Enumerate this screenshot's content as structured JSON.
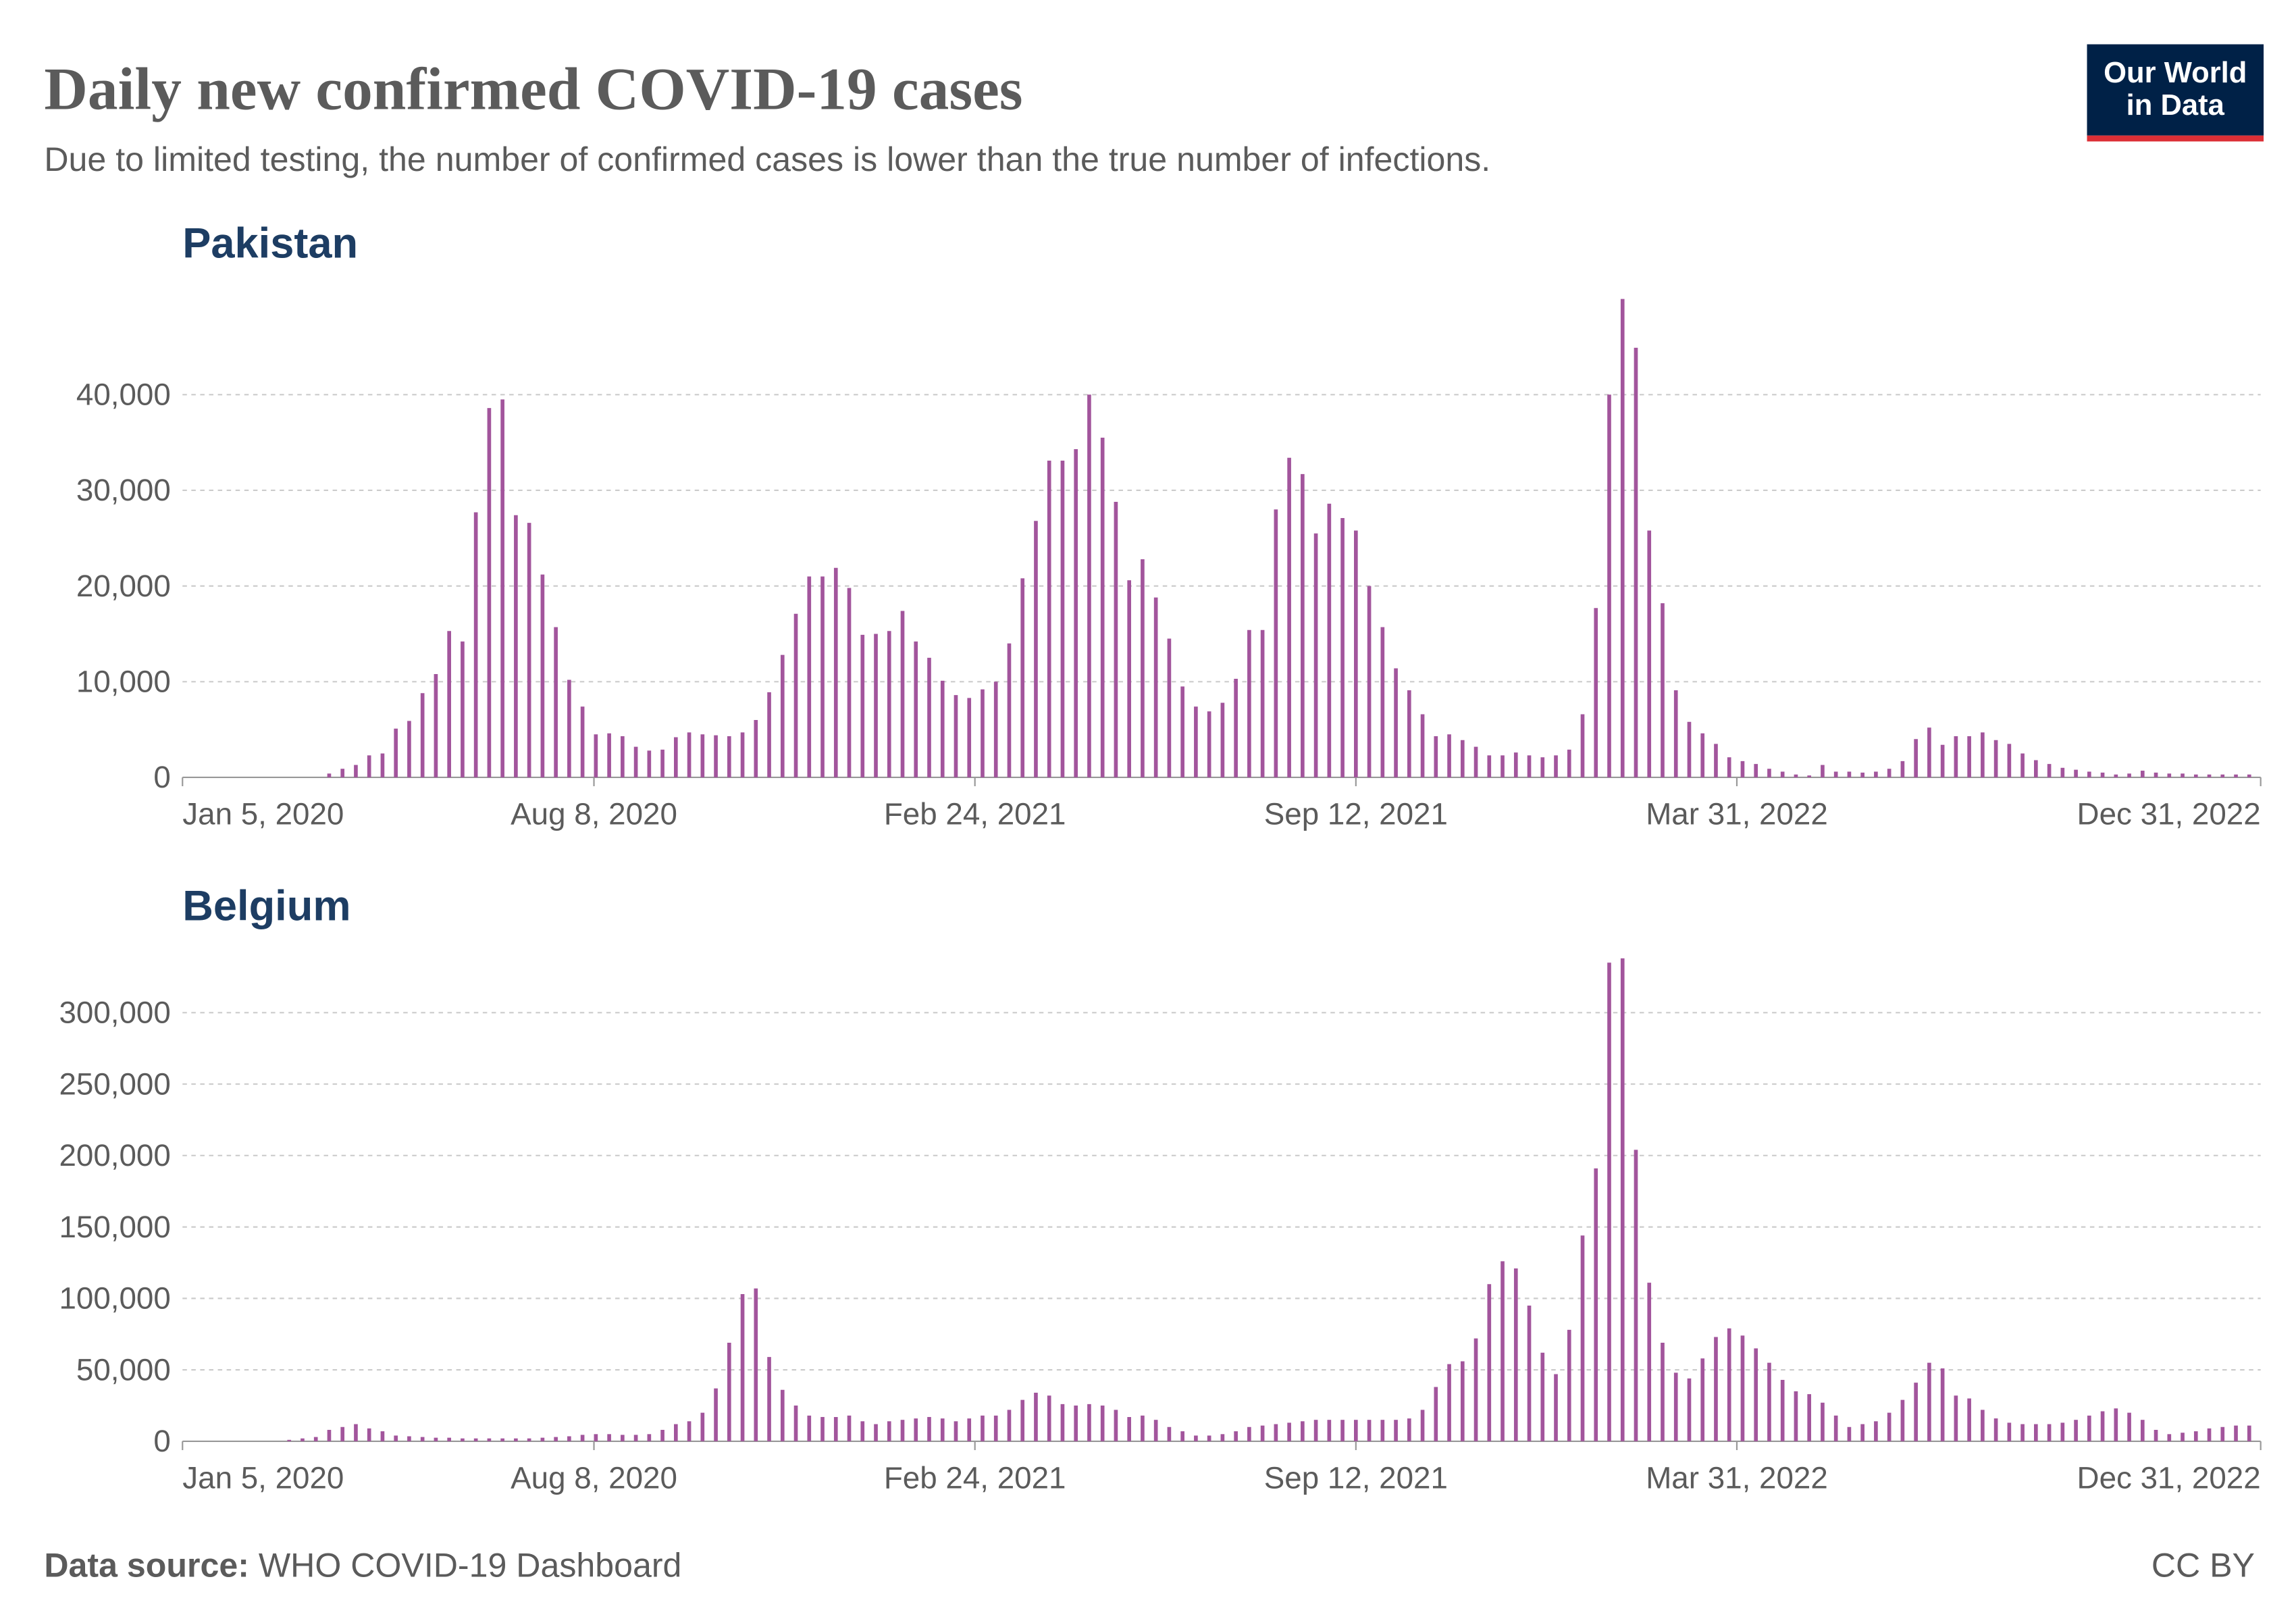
{
  "title": "Daily new confirmed COVID-19 cases",
  "subtitle": "Due to limited testing, the number of confirmed cases is lower than the true number of infections.",
  "logo": [
    "Our World",
    "in Data"
  ],
  "source_label": "Data source:",
  "source": "WHO COVID-19 Dashboard",
  "license": "CC BY",
  "chart_data": [
    {
      "type": "bar",
      "title": "Pakistan",
      "color": "#a2559c",
      "grid": true,
      "x": [
        "2020-01-05",
        "2020-01-12",
        "2020-01-19",
        "2020-01-26",
        "2020-02-02",
        "2020-02-09",
        "2020-02-16",
        "2020-02-23",
        "2020-03-01",
        "2020-03-08",
        "2020-03-15",
        "2020-03-22",
        "2020-03-29",
        "2020-04-05",
        "2020-04-12",
        "2020-04-19",
        "2020-04-26",
        "2020-05-03",
        "2020-05-10",
        "2020-05-17",
        "2020-05-24",
        "2020-05-31",
        "2020-06-07",
        "2020-06-14",
        "2020-06-21",
        "2020-06-28",
        "2020-07-05",
        "2020-07-12",
        "2020-07-19",
        "2020-07-26",
        "2020-08-02",
        "2020-08-09",
        "2020-08-16",
        "2020-08-23",
        "2020-08-30",
        "2020-09-06",
        "2020-09-13",
        "2020-09-20",
        "2020-09-27",
        "2020-10-04",
        "2020-10-11",
        "2020-10-18",
        "2020-10-25",
        "2020-11-01",
        "2020-11-08",
        "2020-11-15",
        "2020-11-22",
        "2020-11-29",
        "2020-12-06",
        "2020-12-13",
        "2020-12-20",
        "2020-12-27",
        "2021-01-03",
        "2021-01-10",
        "2021-01-17",
        "2021-01-24",
        "2021-01-31",
        "2021-02-07",
        "2021-02-14",
        "2021-02-21",
        "2021-02-28",
        "2021-03-07",
        "2021-03-14",
        "2021-03-21",
        "2021-03-28",
        "2021-04-04",
        "2021-04-11",
        "2021-04-18",
        "2021-04-25",
        "2021-05-02",
        "2021-05-09",
        "2021-05-16",
        "2021-05-23",
        "2021-05-30",
        "2021-06-06",
        "2021-06-13",
        "2021-06-20",
        "2021-06-27",
        "2021-07-04",
        "2021-07-11",
        "2021-07-18",
        "2021-07-25",
        "2021-08-01",
        "2021-08-08",
        "2021-08-15",
        "2021-08-22",
        "2021-08-29",
        "2021-09-05",
        "2021-09-12",
        "2021-09-19",
        "2021-09-26",
        "2021-10-03",
        "2021-10-10",
        "2021-10-17",
        "2021-10-24",
        "2021-10-31",
        "2021-11-07",
        "2021-11-14",
        "2021-11-21",
        "2021-11-28",
        "2021-12-05",
        "2021-12-12",
        "2021-12-19",
        "2021-12-26",
        "2022-01-02",
        "2022-01-09",
        "2022-01-16",
        "2022-01-23",
        "2022-01-30",
        "2022-02-06",
        "2022-02-13",
        "2022-02-20",
        "2022-02-27",
        "2022-03-06",
        "2022-03-13",
        "2022-03-20",
        "2022-03-27",
        "2022-04-03",
        "2022-04-10",
        "2022-04-17",
        "2022-04-24",
        "2022-05-01",
        "2022-05-08",
        "2022-05-15",
        "2022-05-22",
        "2022-05-29",
        "2022-06-05",
        "2022-06-12",
        "2022-06-19",
        "2022-06-26",
        "2022-07-03",
        "2022-07-10",
        "2022-07-17",
        "2022-07-24",
        "2022-07-31",
        "2022-08-07",
        "2022-08-14",
        "2022-08-21",
        "2022-08-28",
        "2022-09-04",
        "2022-09-11",
        "2022-09-18",
        "2022-09-25",
        "2022-10-02",
        "2022-10-09",
        "2022-10-16",
        "2022-10-23",
        "2022-10-30",
        "2022-11-06",
        "2022-11-13",
        "2022-11-20",
        "2022-11-27",
        "2022-12-04",
        "2022-12-11",
        "2022-12-18",
        "2022-12-25"
      ],
      "values": [
        0,
        0,
        0,
        0,
        0,
        0,
        0,
        0,
        0,
        0,
        0,
        400,
        900,
        1300,
        2300,
        2500,
        5100,
        5900,
        8800,
        10800,
        15300,
        14200,
        27700,
        38600,
        39500,
        27400,
        26600,
        21200,
        15700,
        10200,
        7400,
        4500,
        4600,
        4300,
        3200,
        2800,
        2900,
        4200,
        4700,
        4500,
        4400,
        4300,
        4700,
        6000,
        8900,
        12800,
        17100,
        21000,
        21000,
        21900,
        19800,
        14900,
        15000,
        15300,
        17400,
        14200,
        12500,
        10100,
        8600,
        8300,
        9200,
        10000,
        14000,
        20800,
        26800,
        33100,
        33100,
        34300,
        40000,
        35500,
        28800,
        20600,
        22800,
        18800,
        14500,
        9500,
        7400,
        6900,
        7800,
        10300,
        15400,
        15400,
        28000,
        33400,
        31700,
        25500,
        28600,
        27100,
        25800,
        20000,
        15700,
        11400,
        9100,
        6600,
        4300,
        4500,
        3900,
        3200,
        2300,
        2300,
        2600,
        2300,
        2100,
        2300,
        2900,
        6600,
        17700,
        40000,
        50000,
        44900,
        25800,
        18200,
        9100,
        5800,
        4600,
        3500,
        2100,
        1700,
        1400,
        900,
        600,
        300,
        200,
        1300,
        600,
        600,
        500,
        600,
        900,
        1700,
        4000,
        5200,
        3400,
        4300,
        4300,
        4700,
        3900,
        3500,
        2500,
        1800,
        1400,
        1000,
        800,
        600,
        500,
        300,
        400,
        700,
        500,
        400,
        400,
        300,
        300,
        300,
        300,
        300
      ],
      "xlim": [
        "2020-01-05",
        "2022-12-31"
      ],
      "xticks": [
        {
          "value": "2020-01-05",
          "label": "Jan 5, 2020"
        },
        {
          "value": "2020-08-08",
          "label": "Aug 8, 2020"
        },
        {
          "value": "2021-02-24",
          "label": "Feb 24, 2021"
        },
        {
          "value": "2021-09-12",
          "label": "Sep 12, 2021"
        },
        {
          "value": "2022-03-31",
          "label": "Mar 31, 2022"
        },
        {
          "value": "2022-12-31",
          "label": "Dec 31, 2022"
        }
      ],
      "ylim": [
        0,
        50000
      ],
      "yticks": [
        0,
        {
          "value": 10000,
          "label": "10,000"
        },
        {
          "value": 20000,
          "label": "20,000"
        },
        {
          "value": 30000,
          "label": "30,000"
        },
        {
          "value": 40000,
          "label": "40,000"
        }
      ]
    },
    {
      "type": "bar",
      "title": "Belgium",
      "color": "#a2559c",
      "grid": true,
      "x": [
        "2020-01-05",
        "2020-01-12",
        "2020-01-19",
        "2020-01-26",
        "2020-02-02",
        "2020-02-09",
        "2020-02-16",
        "2020-02-23",
        "2020-03-01",
        "2020-03-08",
        "2020-03-15",
        "2020-03-22",
        "2020-03-29",
        "2020-04-05",
        "2020-04-12",
        "2020-04-19",
        "2020-04-26",
        "2020-05-03",
        "2020-05-10",
        "2020-05-17",
        "2020-05-24",
        "2020-05-31",
        "2020-06-07",
        "2020-06-14",
        "2020-06-21",
        "2020-06-28",
        "2020-07-05",
        "2020-07-12",
        "2020-07-19",
        "2020-07-26",
        "2020-08-02",
        "2020-08-09",
        "2020-08-16",
        "2020-08-23",
        "2020-08-30",
        "2020-09-06",
        "2020-09-13",
        "2020-09-20",
        "2020-09-27",
        "2020-10-04",
        "2020-10-11",
        "2020-10-18",
        "2020-10-25",
        "2020-11-01",
        "2020-11-08",
        "2020-11-15",
        "2020-11-22",
        "2020-11-29",
        "2020-12-06",
        "2020-12-13",
        "2020-12-20",
        "2020-12-27",
        "2021-01-03",
        "2021-01-10",
        "2021-01-17",
        "2021-01-24",
        "2021-01-31",
        "2021-02-07",
        "2021-02-14",
        "2021-02-21",
        "2021-02-28",
        "2021-03-07",
        "2021-03-14",
        "2021-03-21",
        "2021-03-28",
        "2021-04-04",
        "2021-04-11",
        "2021-04-18",
        "2021-04-25",
        "2021-05-02",
        "2021-05-09",
        "2021-05-16",
        "2021-05-23",
        "2021-05-30",
        "2021-06-06",
        "2021-06-13",
        "2021-06-20",
        "2021-06-27",
        "2021-07-04",
        "2021-07-11",
        "2021-07-18",
        "2021-07-25",
        "2021-08-01",
        "2021-08-08",
        "2021-08-15",
        "2021-08-22",
        "2021-08-29",
        "2021-09-05",
        "2021-09-12",
        "2021-09-19",
        "2021-09-26",
        "2021-10-03",
        "2021-10-10",
        "2021-10-17",
        "2021-10-24",
        "2021-10-31",
        "2021-11-07",
        "2021-11-14",
        "2021-11-21",
        "2021-11-28",
        "2021-12-05",
        "2021-12-12",
        "2021-12-19",
        "2021-12-26",
        "2022-01-02",
        "2022-01-09",
        "2022-01-16",
        "2022-01-23",
        "2022-01-30",
        "2022-02-06",
        "2022-02-13",
        "2022-02-20",
        "2022-02-27",
        "2022-03-06",
        "2022-03-13",
        "2022-03-20",
        "2022-03-27",
        "2022-04-03",
        "2022-04-10",
        "2022-04-17",
        "2022-04-24",
        "2022-05-01",
        "2022-05-08",
        "2022-05-15",
        "2022-05-22",
        "2022-05-29",
        "2022-06-05",
        "2022-06-12",
        "2022-06-19",
        "2022-06-26",
        "2022-07-03",
        "2022-07-10",
        "2022-07-17",
        "2022-07-24",
        "2022-07-31",
        "2022-08-07",
        "2022-08-14",
        "2022-08-21",
        "2022-08-28",
        "2022-09-04",
        "2022-09-11",
        "2022-09-18",
        "2022-09-25",
        "2022-10-02",
        "2022-10-09",
        "2022-10-16",
        "2022-10-23",
        "2022-10-30",
        "2022-11-06",
        "2022-11-13",
        "2022-11-20",
        "2022-11-27",
        "2022-12-04",
        "2022-12-11",
        "2022-12-18",
        "2022-12-25"
      ],
      "values": [
        0,
        0,
        0,
        0,
        0,
        0,
        0,
        0,
        1000,
        2000,
        3000,
        8000,
        10000,
        12000,
        9000,
        7000,
        4000,
        3500,
        3000,
        2500,
        2500,
        2000,
        2000,
        2000,
        2000,
        2000,
        2000,
        2500,
        3000,
        3500,
        4500,
        5000,
        5000,
        4500,
        4500,
        5000,
        8000,
        12000,
        14000,
        20000,
        37000,
        69000,
        103000,
        107000,
        59000,
        36000,
        25000,
        18000,
        17000,
        17000,
        18000,
        14000,
        12000,
        14000,
        15000,
        16000,
        17000,
        16000,
        14000,
        16000,
        18000,
        18000,
        22000,
        29000,
        34000,
        32000,
        26000,
        25000,
        26000,
        25000,
        22000,
        17000,
        18000,
        15000,
        10000,
        7000,
        4000,
        4000,
        5000,
        7000,
        10000,
        11000,
        12000,
        13000,
        14000,
        15000,
        15000,
        15000,
        15000,
        15000,
        15000,
        15000,
        16000,
        22000,
        38000,
        54000,
        56000,
        72000,
        110000,
        126000,
        121000,
        95000,
        62000,
        47000,
        78000,
        144000,
        191000,
        335000,
        338000,
        204000,
        111000,
        69000,
        48000,
        44000,
        58000,
        73000,
        79000,
        74000,
        65000,
        55000,
        43000,
        35000,
        33000,
        27000,
        18000,
        10000,
        12000,
        14000,
        20000,
        29000,
        41000,
        55000,
        51000,
        32000,
        30000,
        22000,
        16000,
        13000,
        12000,
        12000,
        12000,
        13000,
        15000,
        18000,
        21000,
        23000,
        20000,
        15000,
        8000,
        5000,
        6000,
        7000,
        9000,
        10000,
        11000,
        11000
      ],
      "xlim": [
        "2020-01-05",
        "2022-12-31"
      ],
      "xticks": [
        {
          "value": "2020-01-05",
          "label": "Jan 5, 2020"
        },
        {
          "value": "2020-08-08",
          "label": "Aug 8, 2020"
        },
        {
          "value": "2021-02-24",
          "label": "Feb 24, 2021"
        },
        {
          "value": "2021-09-12",
          "label": "Sep 12, 2021"
        },
        {
          "value": "2022-03-31",
          "label": "Mar 31, 2022"
        },
        {
          "value": "2022-12-31",
          "label": "Dec 31, 2022"
        }
      ],
      "ylim": [
        0,
        340000
      ],
      "yticks": [
        0,
        {
          "value": 50000,
          "label": "50,000"
        },
        {
          "value": 100000,
          "label": "100,000"
        },
        {
          "value": 150000,
          "label": "150,000"
        },
        {
          "value": 200000,
          "label": "200,000"
        },
        {
          "value": 250000,
          "label": "250,000"
        },
        {
          "value": 300000,
          "label": "300,000"
        }
      ]
    }
  ]
}
